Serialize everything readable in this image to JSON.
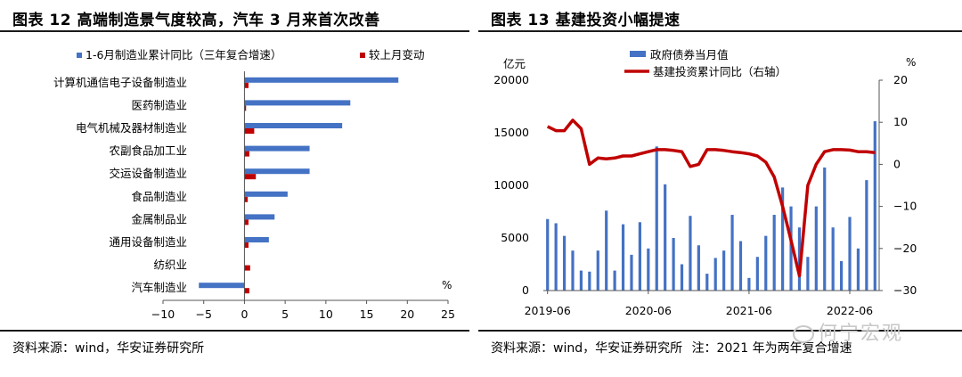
{
  "left": {
    "title": "图表 12  高端制造景气度较高，汽车 3 月来首次改善",
    "source": "资料来源：wind，华安证券研究所",
    "unit": "%",
    "chart_data": {
      "type": "bar",
      "orientation": "horizontal",
      "categories": [
        "计算机通信电子设备制造业",
        "医药制造业",
        "电气机械及器材制造业",
        "农副食品加工业",
        "交运设备制造业",
        "食品制造业",
        "金属制品业",
        "通用设备制造业",
        "纺织业",
        "汽车制造业"
      ],
      "series": [
        {
          "name": "1-6月制造业累计同比（三年复合增速）",
          "color": "#4472c4",
          "values": [
            18.9,
            13.0,
            12.0,
            8.0,
            8.0,
            5.3,
            3.7,
            3.0,
            0.0,
            -5.6
          ]
        },
        {
          "name": "较上月变动",
          "color": "#c00000",
          "values": [
            0.5,
            0.2,
            1.2,
            0.6,
            1.4,
            0.4,
            0.5,
            0.5,
            0.7,
            0.6
          ]
        }
      ],
      "xlim": [
        -10,
        25
      ],
      "xticks": [
        "−10",
        "−5",
        "0",
        "5",
        "10",
        "15",
        "20",
        "25"
      ],
      "legend": "top"
    }
  },
  "right": {
    "title": "图表 13  基建投资小幅提速",
    "source": "资料来源：wind，华安证券研究所",
    "note": "注：2021 年为两年复合增速",
    "chart_data": {
      "type": "bar+line",
      "series": [
        {
          "name": "政府债券当月值",
          "type": "bar",
          "axis": "left",
          "color": "#4472c4",
          "values": [
            6800,
            6400,
            5200,
            3800,
            1900,
            1800,
            3800,
            7600,
            1900,
            6300,
            3400,
            6500,
            4000,
            13700,
            10100,
            5000,
            2500,
            7100,
            4300,
            1600,
            3100,
            3800,
            7200,
            4700,
            1200,
            3200,
            5200,
            7200,
            9800,
            8000,
            6000,
            3200,
            8000,
            11700,
            6000,
            2800,
            7000,
            4000,
            10500,
            16100
          ]
        },
        {
          "name": "基建投资累计同比（右轴）",
          "type": "line",
          "axis": "right",
          "color": "#c00000",
          "values": [
            9.0,
            8.0,
            8.0,
            10.5,
            8.5,
            0.0,
            1.5,
            1.3,
            1.5,
            2.0,
            2.0,
            2.5,
            3.0,
            3.5,
            3.5,
            3.3,
            3.0,
            -0.5,
            0.0,
            3.5,
            3.5,
            3.3,
            3.0,
            2.8,
            2.5,
            2.0,
            0.5,
            -3.0,
            -10.0,
            -18.0,
            -26.5,
            -5.0,
            0.0,
            3.0,
            3.5,
            3.5,
            3.4,
            3.0,
            3.0,
            2.8
          ]
        }
      ],
      "left_axis": {
        "unit": "亿元",
        "ylim": [
          0,
          20000
        ],
        "ticks": [
          "0",
          "5000",
          "10000",
          "15000",
          "20000"
        ]
      },
      "right_axis": {
        "unit": "%",
        "ylim": [
          -30,
          20
        ],
        "ticks": [
          "−30",
          "−20",
          "−10",
          "0",
          "10",
          "20"
        ]
      },
      "x_ticks": [
        "2019-06",
        "2020-06",
        "2021-06",
        "2022-06"
      ],
      "legend": "top"
    }
  },
  "watermark": "何宁宏观"
}
